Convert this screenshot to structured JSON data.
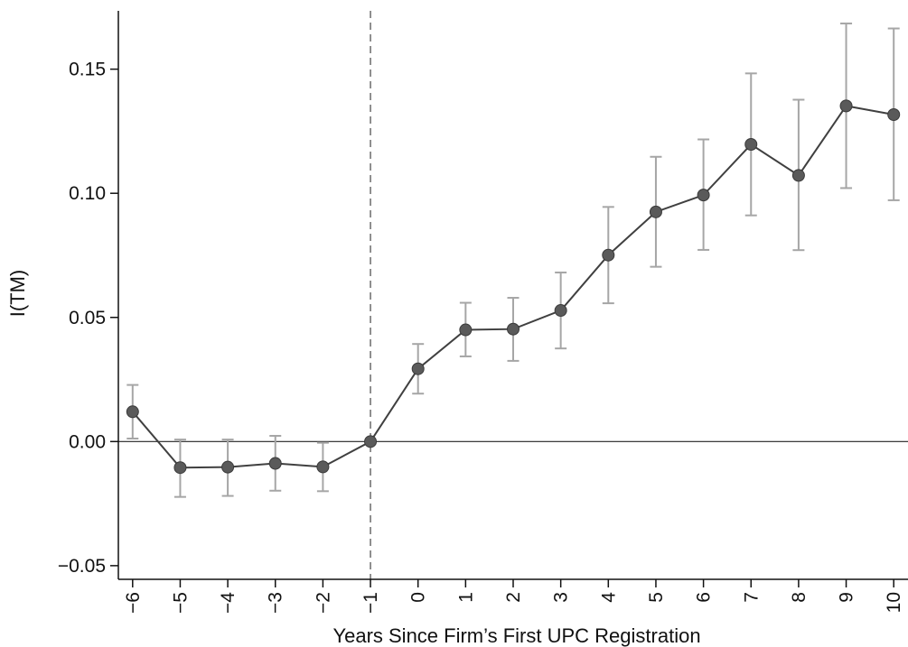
{
  "chart_data": {
    "type": "line",
    "title": "",
    "xlabel": "Years Since Firm’s First UPC Registration",
    "ylabel": "I(TM)",
    "x": [
      -6,
      -5,
      -4,
      -3,
      -2,
      -1,
      0,
      1,
      2,
      3,
      4,
      5,
      6,
      7,
      8,
      9,
      10
    ],
    "x_tick_labels": [
      "−6",
      "−5",
      "−4",
      "−3",
      "−2",
      "−1",
      "0",
      "1",
      "2",
      "3",
      "4",
      "5",
      "6",
      "7",
      "8",
      "9",
      "10"
    ],
    "y_ticks": [
      -0.05,
      0.0,
      0.05,
      0.1,
      0.15
    ],
    "y_tick_labels": [
      "−0.05",
      "0.00",
      "0.05",
      "0.10",
      "0.15"
    ],
    "series": [
      {
        "values": [
          0.012,
          -0.0105,
          -0.0103,
          -0.0088,
          -0.0102,
          0.0,
          0.0293,
          0.045,
          0.0453,
          0.0528,
          0.0751,
          0.0925,
          0.0993,
          0.1197,
          0.1072,
          0.1352,
          0.1317
        ],
        "ci_low": [
          0.0012,
          -0.0223,
          -0.0219,
          -0.0198,
          -0.02,
          0.0,
          0.0193,
          0.0343,
          0.0325,
          0.0375,
          0.0557,
          0.0704,
          0.0772,
          0.0911,
          0.0771,
          0.1021,
          0.0972
        ],
        "ci_high": [
          0.0228,
          0.0008,
          0.0008,
          0.0023,
          -0.0005,
          0.0,
          0.0393,
          0.0559,
          0.0579,
          0.0681,
          0.0945,
          0.1147,
          0.1217,
          0.1483,
          0.1377,
          0.1684,
          0.1664
        ]
      }
    ],
    "reference_lines": {
      "horizontal_y": 0.0,
      "vertical_x": -1
    },
    "xlim": [
      -6.3,
      10.3
    ],
    "ylim": [
      -0.0555,
      0.1735
    ],
    "grid": false,
    "legend": "none",
    "colors": {
      "line": "#404040",
      "marker": "#5a5a5a",
      "error_bar": "#a6a6a6",
      "reference_line": "#222222",
      "axis": "#111111"
    }
  }
}
